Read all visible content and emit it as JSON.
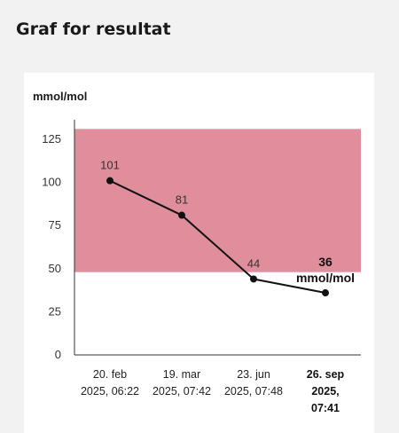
{
  "page": {
    "heading": "Graf for resultat"
  },
  "colors": {
    "page_background": "#f2f2f2",
    "panel_background": "#ffffff",
    "reference_band": "#e18e9c",
    "line": "#111111",
    "axis": "#333333"
  },
  "chart_data": {
    "type": "line",
    "y_unit_label": "mmol/mol",
    "ylim": [
      0,
      130
    ],
    "y_ticks": [
      0,
      25,
      50,
      75,
      100,
      125
    ],
    "grid": false,
    "legend": "none",
    "reference_band": {
      "from": 48,
      "to": 131
    },
    "points": [
      {
        "date": "20. feb",
        "time": "2025, 06:22",
        "value": 101,
        "label": "101"
      },
      {
        "date": "19. mar",
        "time": "2025, 07:42",
        "value": 81,
        "label": "81"
      },
      {
        "date": "23. jun",
        "time": "2025, 07:48",
        "value": 44,
        "label": "44"
      },
      {
        "date": "26. sep",
        "time": [
          "2025,",
          "07:41"
        ],
        "value": 36,
        "label": "36",
        "unit": "mmol/mol",
        "highlight": true
      }
    ]
  }
}
